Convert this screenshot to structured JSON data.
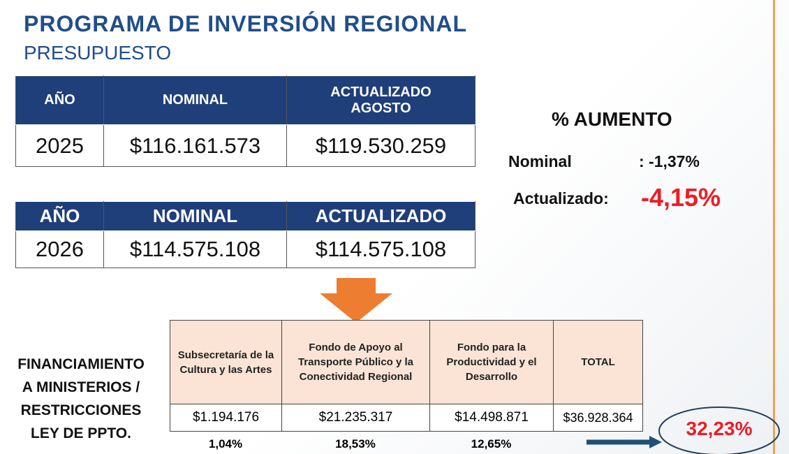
{
  "header": {
    "title": "PROGRAMA DE INVERSIÓN REGIONAL",
    "subtitle": "PRESUPUESTO"
  },
  "table_2025": {
    "headers": [
      "AÑO",
      "NOMINAL",
      "ACTUALIZADO AGOSTO"
    ],
    "row": [
      "2025",
      "$116.161.573",
      "$119.530.259"
    ]
  },
  "table_2026": {
    "headers": [
      "AÑO",
      "NOMINAL",
      "ACTUALIZADO"
    ],
    "row": [
      "2026",
      "$114.575.108",
      "$114.575.108"
    ]
  },
  "increase": {
    "heading": "% AUMENTO",
    "nominal_label": "Nominal",
    "nominal_value": ": -1,37%",
    "updated_label": "Actualizado:",
    "updated_value": "-4,15%"
  },
  "financing": {
    "label_lines": [
      "FINANCIAMIENTO",
      "A MINISTERIOS /",
      "RESTRICCIONES",
      "LEY DE PPTO."
    ],
    "headers": [
      "Subsecretaría de la Cultura y las Artes",
      "Fondo de Apoyo al Transporte Público y la Conectividad Regional",
      "Fondo para la Productividad y el Desarrollo",
      "TOTAL"
    ],
    "amounts": [
      "$1.194.176",
      "$21.235.317",
      "$14.498.871",
      "$36.928.364"
    ],
    "percents": [
      "1,04%",
      "18,53%",
      "12,65%"
    ],
    "total_percent": "32,23%"
  }
}
